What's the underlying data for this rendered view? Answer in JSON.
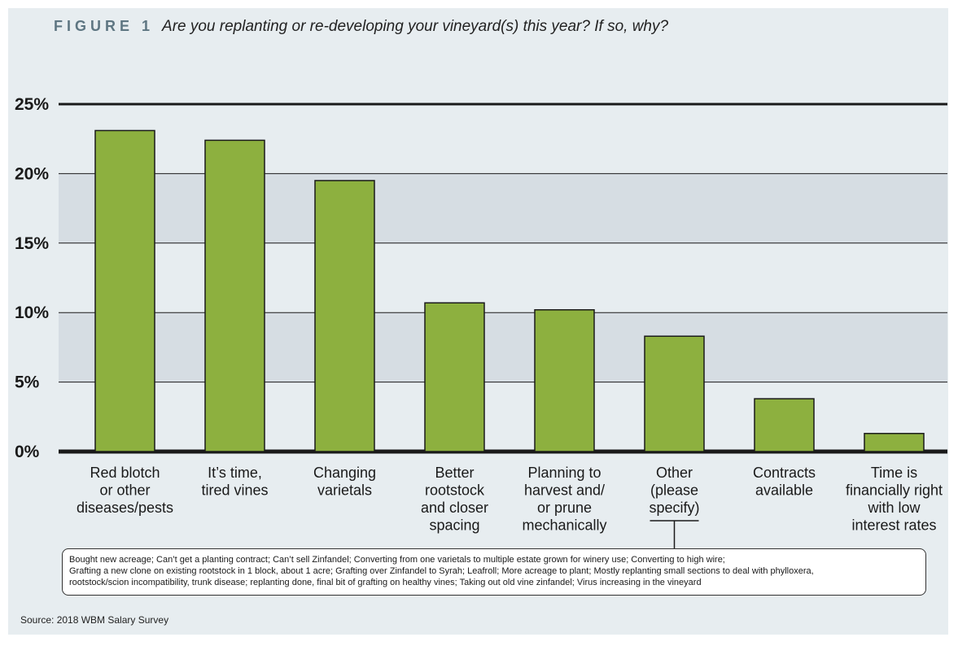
{
  "figure": {
    "label": "FIGURE 1",
    "title": "Are you replanting or re-developing your vineyard(s) this year? If so, why?"
  },
  "colors": {
    "bar": "#8db03f",
    "bar_stroke": "#1a1a1a",
    "band_dark": "#d6dde3",
    "band_light": "#e7edf0",
    "title_label": "#5e7682"
  },
  "chart_data": {
    "type": "bar",
    "title": "Are you replanting or re-developing your vineyard(s) this year? If so, why?",
    "xlabel": "",
    "ylabel": "",
    "ylim": [
      0,
      25
    ],
    "yticks": [
      {
        "value": 0,
        "label": "0%"
      },
      {
        "value": 5,
        "label": "5%"
      },
      {
        "value": 10,
        "label": "10%"
      },
      {
        "value": 15,
        "label": "15%"
      },
      {
        "value": 20,
        "label": "20%"
      },
      {
        "value": 25,
        "label": "25%"
      }
    ],
    "categories": [
      [
        "Red blotch",
        "or other",
        "diseases/pests"
      ],
      [
        "It’s time,",
        "tired vines"
      ],
      [
        "Changing",
        "varietals"
      ],
      [
        "Better",
        "rootstock",
        "and closer",
        "spacing"
      ],
      [
        "Planning to",
        "harvest and/",
        "or prune",
        "mechanically"
      ],
      [
        "Other",
        "(please",
        "specify)"
      ],
      [
        "Contracts",
        "available"
      ],
      [
        "Time is",
        "financially right",
        "with low",
        "interest rates"
      ]
    ],
    "values": [
      23.1,
      22.4,
      19.5,
      10.7,
      10.2,
      8.3,
      3.8,
      1.3
    ]
  },
  "note": {
    "lines": [
      "Bought new acreage; Can’t get a planting contract; Can’t sell Zinfandel; Converting from one varietals to multiple estate grown for winery use; Converting to high wire;",
      "Grafting a new clone on existing rootstock in 1 block, about 1 acre; Grafting over Zinfandel to Syrah; Leafroll; More acreage to plant; Mostly replanting small sections to deal with phylloxera,",
      "rootstock/scion incompatibility, trunk disease; replanting done, final bit of grafting on healthy vines; Taking out old vine zinfandel; Virus increasing in the vineyard"
    ]
  },
  "source": "Source: 2018 WBM Salary Survey"
}
